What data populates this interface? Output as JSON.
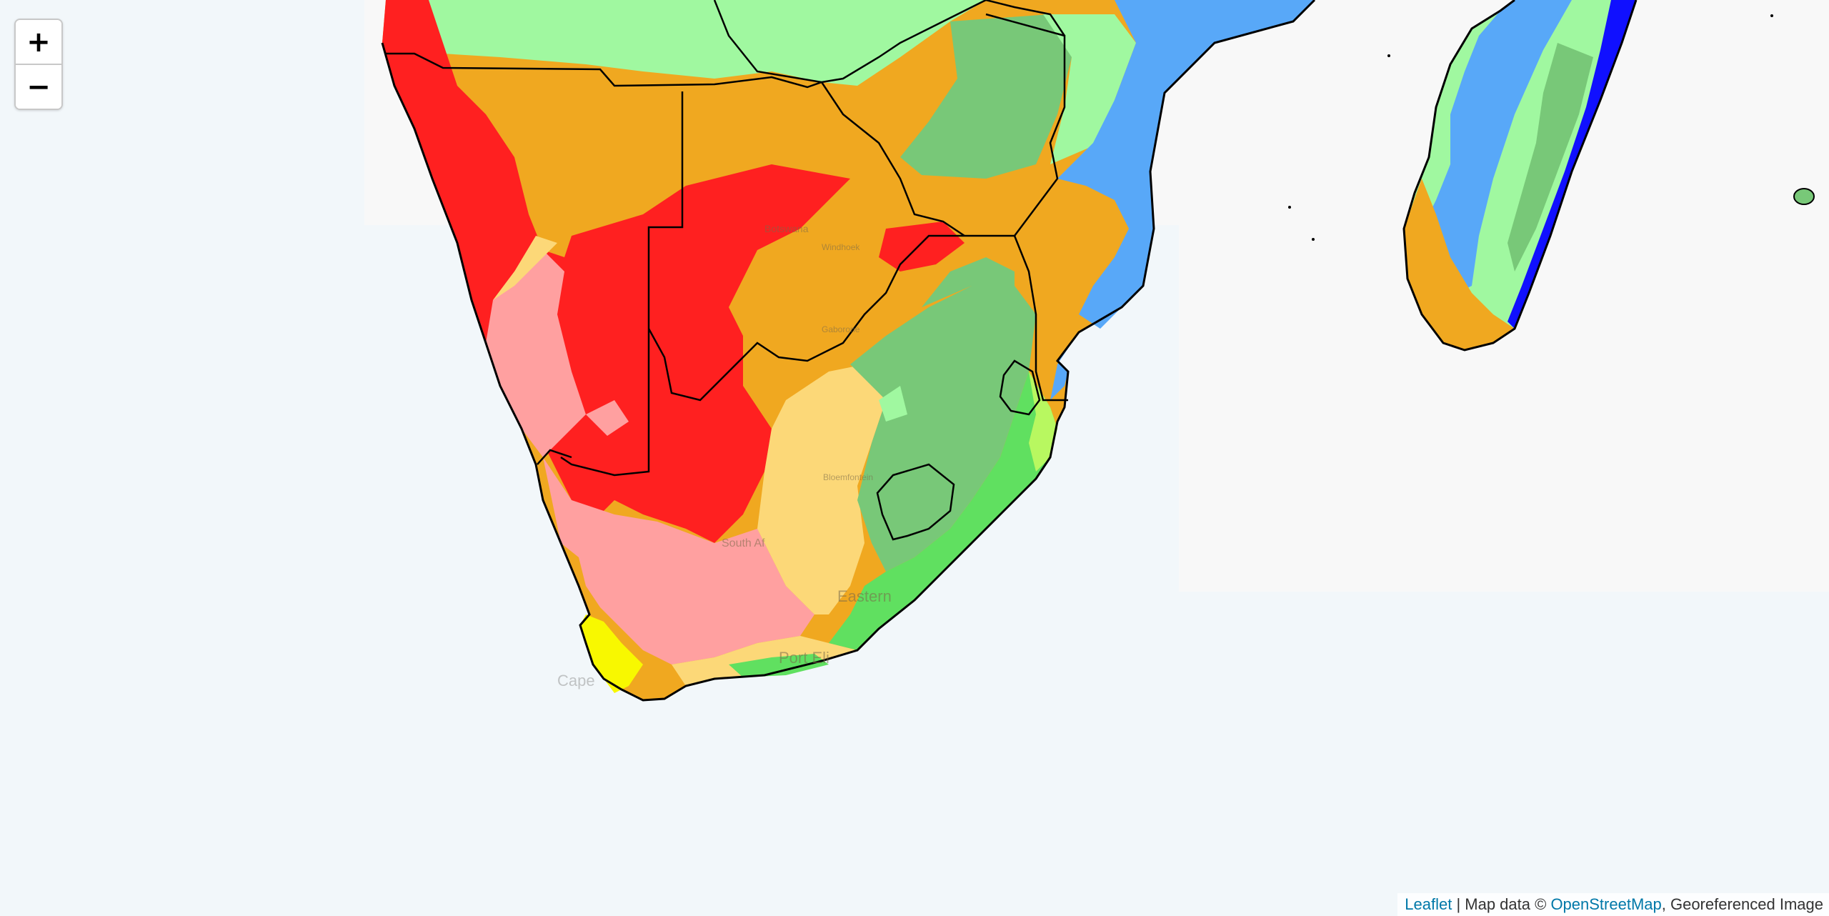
{
  "zoom": {
    "in_label": "+",
    "out_label": "−"
  },
  "attribution": {
    "leaflet_label": "Leaflet",
    "separator": " | Map data © ",
    "osm_label": "OpenStreetMap",
    "suffix": ", Georeferenced Image"
  },
  "basemap_labels": {
    "south_africa": "South Af",
    "cape_town": "Cape",
    "port_elizabeth": "Port Eli",
    "eastern_cape": "Eastern",
    "bloemfontein": "Bloemfontein",
    "botswana": "Botswana",
    "gaborone": "Gaborone",
    "windhoek": "Windhoek"
  },
  "colors": {
    "ocean": "#f2f7fa",
    "arid_desert_hot": "#ff2020",
    "arid_desert_cold": "#ffa0a0",
    "arid_steppe_hot": "#f0a820",
    "arid_steppe_cold": "#fcd878",
    "temperate_dry_summer": "#f8f800",
    "temperate_dry_winter": "#98f098",
    "temperate_no_dry": "#60e060",
    "highland": "#78c878",
    "tropical_monsoon": "#58a8f8",
    "tropical_rainforest": "#1010ff",
    "tropical_savanna": "#a0f8a0",
    "border": "#000000"
  }
}
